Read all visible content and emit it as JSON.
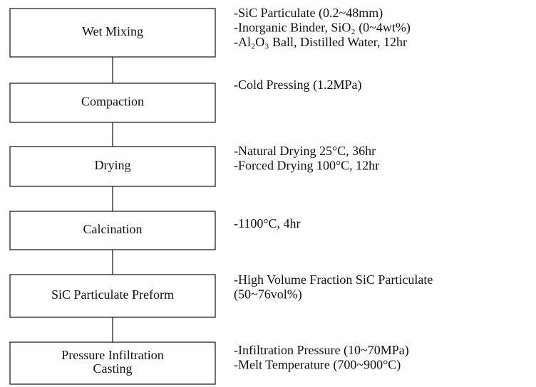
{
  "nodes": [
    {
      "label": [
        "Wet Mixing"
      ],
      "notes": [
        "-SiC Particulate (0.2~48mm)",
        "-Inorganic Binder, SiO₂ (0~4wt%)",
        "-Al₂O₃ Ball, Distilled Water, 12hr"
      ]
    },
    {
      "label": [
        "Compaction"
      ],
      "notes": [
        "-Cold Pressing (1.2MPa)"
      ]
    },
    {
      "label": [
        "Drying"
      ],
      "notes": [
        "-Natural Drying 25°C, 36hr",
        "-Forced Drying 100°C, 12hr"
      ]
    },
    {
      "label": [
        "Calcination"
      ],
      "notes": [
        "-1100°C, 4hr"
      ]
    },
    {
      "label": [
        "SiC Particulate Preform"
      ],
      "notes": [
        "-High Volume Fraction SiC Particulate",
        "(50~76vol%)"
      ]
    },
    {
      "label": [
        "Pressure Infiltration",
        "Casting"
      ],
      "notes": [
        "-Infiltration Pressure (10~70MPa)",
        "-Melt Temperature (700~900°C)"
      ]
    }
  ]
}
